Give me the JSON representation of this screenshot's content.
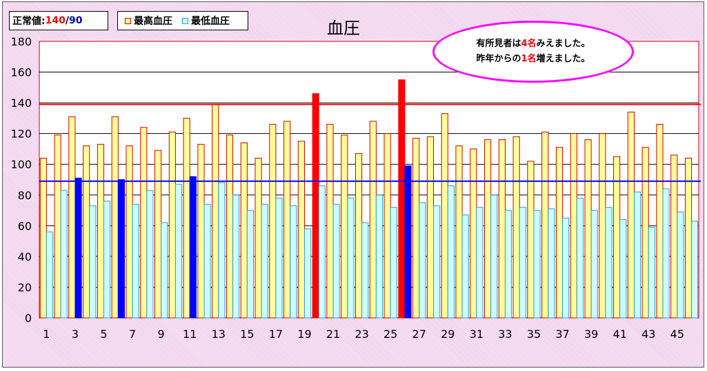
{
  "normal": {
    "label": "正常値:",
    "high": "140",
    "sep": "/",
    "low": "90"
  },
  "colors": {
    "high_fill": "#ffff99",
    "high_stroke": "#cc0000",
    "low_fill": "#ccffff",
    "low_stroke": "#3399cc",
    "high_alert": "#ff0000",
    "low_alert": "#0000ff",
    "high_threshold_line": "#ff0000",
    "low_threshold_line": "#0000ff"
  },
  "callout": {
    "line1": {
      "pre": "有所見者は",
      "num": "4名",
      "post": "みえました。"
    },
    "line2": {
      "pre": "昨年からの",
      "num": "1名",
      "post": "増えました。"
    }
  },
  "chart_data": {
    "type": "bar",
    "title": "血圧",
    "xlabel": "",
    "ylabel": "",
    "ylim": [
      0,
      180
    ],
    "yticks": [
      0,
      20,
      40,
      60,
      80,
      100,
      120,
      140,
      160,
      180
    ],
    "xtick_labels": [
      "1",
      "3",
      "5",
      "7",
      "9",
      "11",
      "13",
      "15",
      "17",
      "19",
      "21",
      "23",
      "25",
      "27",
      "29",
      "31",
      "33",
      "35",
      "37",
      "39",
      "41",
      "43",
      "45"
    ],
    "categories": [
      1,
      2,
      3,
      4,
      5,
      6,
      7,
      8,
      9,
      10,
      11,
      12,
      13,
      14,
      15,
      16,
      17,
      18,
      19,
      20,
      21,
      22,
      23,
      24,
      25,
      26,
      27,
      28,
      29,
      30,
      31,
      32,
      33,
      34,
      35,
      36,
      37,
      38,
      39,
      40,
      41,
      42,
      43,
      44,
      45,
      46
    ],
    "series": [
      {
        "name": "最高血圧",
        "values": [
          104,
          119,
          131,
          112,
          113,
          131,
          112,
          124,
          109,
          121,
          130,
          113,
          139,
          119,
          114,
          104,
          126,
          128,
          115,
          146,
          126,
          119,
          107,
          128,
          120,
          155,
          117,
          118,
          133,
          112,
          110,
          116,
          116,
          118,
          102,
          121,
          111,
          120,
          116,
          120,
          105,
          134,
          111,
          126,
          106,
          104
        ]
      },
      {
        "name": "最低血圧",
        "values": [
          56,
          83,
          91,
          73,
          76,
          90,
          74,
          83,
          62,
          87,
          92,
          74,
          88,
          80,
          70,
          74,
          78,
          73,
          58,
          86,
          74,
          78,
          62,
          80,
          72,
          99,
          75,
          73,
          86,
          67,
          72,
          80,
          70,
          72,
          70,
          71,
          65,
          78,
          70,
          72,
          64,
          82,
          59,
          84,
          69,
          63
        ]
      }
    ],
    "thresholds": {
      "high": 139,
      "low": 89
    },
    "legend": {
      "placement": "top-left"
    },
    "grid": true
  }
}
